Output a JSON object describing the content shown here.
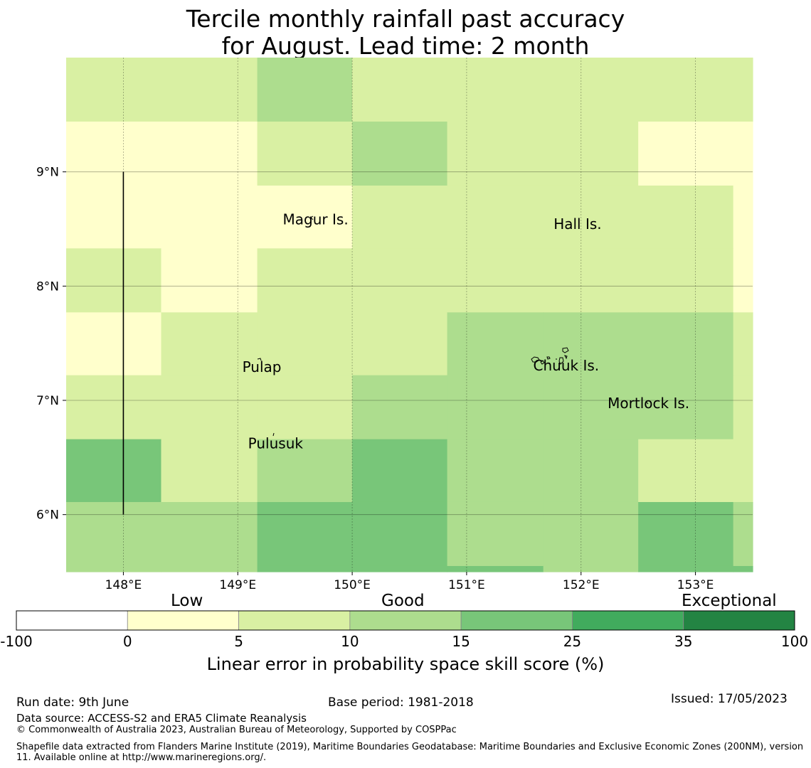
{
  "title": {
    "line1": "Tercile monthly rainfall past accuracy",
    "line2": "for August. Lead time: 2 month"
  },
  "map": {
    "lon_range": [
      147.5,
      153.5
    ],
    "lat_range": [
      5.5,
      10.0
    ],
    "lon_ticks": [
      {
        "value": 148,
        "label": "148°E"
      },
      {
        "value": 149,
        "label": "149°E"
      },
      {
        "value": 150,
        "label": "150°E"
      },
      {
        "value": 151,
        "label": "151°E"
      },
      {
        "value": 152,
        "label": "152°E"
      },
      {
        "value": 153,
        "label": "153°E"
      }
    ],
    "lat_ticks": [
      {
        "value": 9,
        "label": "9°N"
      },
      {
        "value": 8,
        "label": "8°N"
      },
      {
        "value": 7,
        "label": "7°N"
      },
      {
        "value": 6,
        "label": "6°N"
      }
    ],
    "grid_lon_edges": [
      147.5,
      148.33,
      149.17,
      150.0,
      150.83,
      151.67,
      152.5,
      153.33,
      153.5
    ],
    "grid_lat_edges": [
      10.0,
      9.44,
      8.88,
      8.33,
      7.77,
      7.22,
      6.66,
      6.11,
      5.55,
      5.5
    ],
    "grid_classes": [
      [
        2,
        2,
        3,
        2,
        2,
        2,
        2,
        2
      ],
      [
        1,
        1,
        2,
        3,
        2,
        2,
        1,
        1
      ],
      [
        1,
        1,
        1,
        2,
        2,
        2,
        2,
        1
      ],
      [
        2,
        1,
        2,
        2,
        2,
        2,
        2,
        1
      ],
      [
        1,
        2,
        2,
        2,
        3,
        3,
        3,
        2
      ],
      [
        2,
        2,
        2,
        3,
        3,
        3,
        3,
        2
      ],
      [
        4,
        2,
        3,
        4,
        3,
        3,
        2,
        2
      ],
      [
        3,
        3,
        4,
        4,
        3,
        3,
        4,
        3
      ],
      [
        3,
        3,
        4,
        4,
        4,
        3,
        4,
        4
      ]
    ],
    "eez_line": {
      "lon": 148.0,
      "lat_from": 9.0,
      "lat_to": 6.0
    },
    "places": [
      {
        "name": "Magur Is.",
        "lon": 149.68,
        "lat": 8.54
      },
      {
        "name": "Hall Is.",
        "lon": 151.97,
        "lat": 8.5
      },
      {
        "name": "Pulap",
        "lon": 149.21,
        "lat": 7.25
      },
      {
        "name": "Chuuk Is.",
        "lon": 151.87,
        "lat": 7.26
      },
      {
        "name": "Mortlock Is.",
        "lon": 152.59,
        "lat": 6.93
      },
      {
        "name": "Pulusuk",
        "lon": 149.33,
        "lat": 6.58
      }
    ]
  },
  "colorbar": {
    "band_labels": [
      "Low",
      "Good",
      "Exceptional"
    ],
    "bins": [
      {
        "from": "-100",
        "to": "0",
        "color": "#ffffff"
      },
      {
        "from": "0",
        "to": "5",
        "color": "#ffffcc"
      },
      {
        "from": "5",
        "to": "10",
        "color": "#d9f0a3"
      },
      {
        "from": "10",
        "to": "15",
        "color": "#addd8e"
      },
      {
        "from": "15",
        "to": "25",
        "color": "#78c679"
      },
      {
        "from": "25",
        "to": "35",
        "color": "#41ab5d"
      },
      {
        "from": "35",
        "to": "100",
        "color": "#238443"
      }
    ],
    "tick_labels": [
      "-100",
      "0",
      "5",
      "10",
      "15",
      "25",
      "35",
      "100"
    ],
    "title": "Linear error in probability space skill score (%)"
  },
  "footer": {
    "run_date": "Run date: 9th June",
    "base_period": "Base period: 1981-2018",
    "issued": "Issued: 17/05/2023",
    "data_source": "Data source: ACCESS-S2 and ERA5 Climate Reanalysis",
    "copyright": "© Commonwealth of Australia 2023, Australian Bureau of Meteorology, Supported by COSPPac",
    "shapefile": "Shapefile data extracted from Flanders Marine Institute (2019), Maritime Boundaries Geodatabase: Maritime Boundaries and Exclusive Economic Zones (200NM), version 11. Available online at http://www.marineregions.org/."
  }
}
